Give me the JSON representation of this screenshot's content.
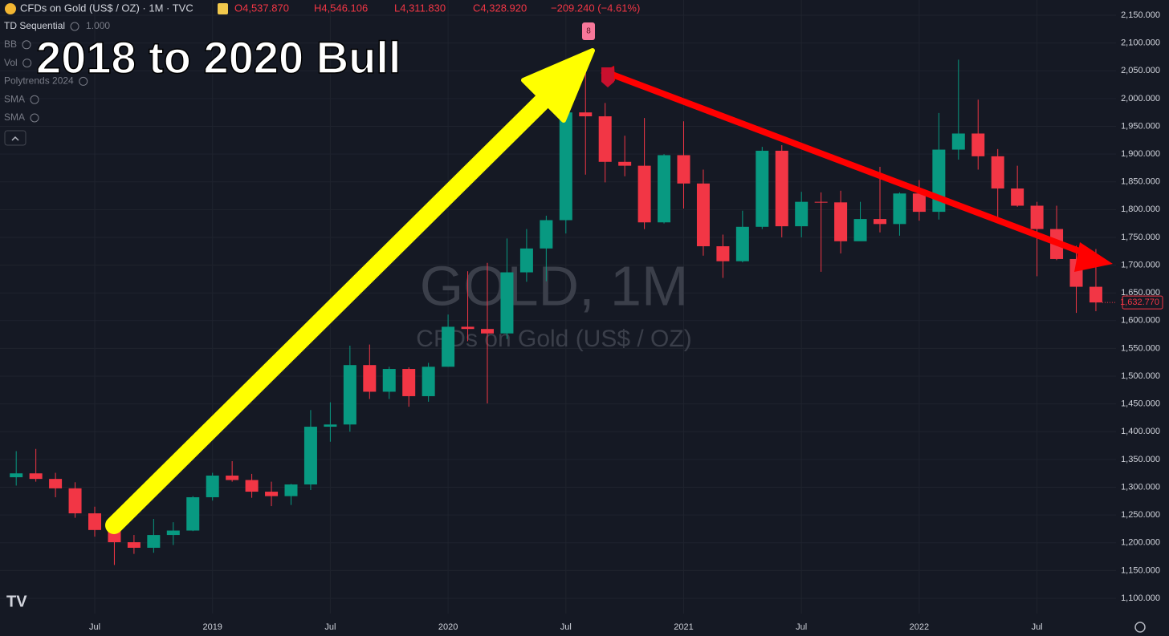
{
  "chart_data": {
    "type": "candlestick",
    "header": {
      "symbol": "CFDs on Gold (US$ / OZ) · 1M · TVC",
      "ohlc": [
        "O4,537.870",
        "H4,546.106",
        "L4,311.830",
        "C4,328.920",
        "−209.240 (−4.61%)"
      ]
    },
    "indicators": [
      {
        "name": "TD Sequential",
        "value": "1.000"
      },
      {
        "name": "BB"
      },
      {
        "name": "Vol"
      },
      {
        "name": "Polytrends 2024"
      },
      {
        "name": "SMA"
      },
      {
        "name": "SMA"
      }
    ],
    "title": "2018 to 2020 Bull",
    "watermark": [
      "GOLD, 1M",
      "CFDs on Gold (US$ / OZ)"
    ],
    "td_marker": "8",
    "categories": [
      null,
      null,
      null,
      null,
      "Jul",
      null,
      null,
      null,
      null,
      null,
      "2019",
      null,
      null,
      null,
      null,
      null,
      "Jul",
      null,
      null,
      null,
      null,
      null,
      "2020",
      null,
      null,
      null,
      null,
      null,
      "Jul",
      null,
      null,
      null,
      null,
      null,
      "2021",
      null,
      null,
      null,
      null,
      null,
      "Jul",
      null,
      null,
      null,
      null,
      null,
      "2022",
      null,
      null,
      null,
      null,
      null,
      "Jul",
      null,
      null,
      null
    ],
    "open": [
      1318,
      1325,
      1315,
      1298,
      1253,
      1223,
      1201,
      1191,
      1214,
      1222,
      1282,
      1321,
      1313,
      1292,
      1284,
      1305,
      1409,
      1413,
      1520,
      1472,
      1513,
      1464,
      1517,
      1589,
      1585,
      1577,
      1687,
      1730,
      1781,
      1975,
      1968,
      1886,
      1879,
      1777,
      1898,
      1847,
      1734,
      1707,
      1769,
      1906,
      1770,
      1814,
      1813,
      1743,
      1783,
      1774,
      1829,
      1796,
      1908,
      1937,
      1896,
      1838,
      1807,
      1765,
      1711,
      1661
    ],
    "high": [
      1365,
      1369,
      1326,
      1309,
      1265,
      1224,
      1214,
      1243,
      1237,
      1284,
      1326,
      1347,
      1324,
      1310,
      1306,
      1439,
      1453,
      1555,
      1557,
      1517,
      1516,
      1524,
      1611,
      1689,
      1704,
      1748,
      1765,
      1789,
      1984,
      2075,
      1992,
      1933,
      1965,
      1900,
      1959,
      1872,
      1755,
      1798,
      1913,
      1916,
      1832,
      1831,
      1834,
      1814,
      1877,
      1831,
      1853,
      1974,
      2070,
      1998,
      1909,
      1879,
      1814,
      1807,
      1735,
      1729
    ],
    "low": [
      1303,
      1310,
      1282,
      1245,
      1211,
      1160,
      1180,
      1182,
      1196,
      1221,
      1276,
      1310,
      1281,
      1266,
      1268,
      1295,
      1382,
      1400,
      1459,
      1459,
      1445,
      1454,
      1517,
      1563,
      1451,
      1567,
      1670,
      1671,
      1757,
      1863,
      1849,
      1860,
      1765,
      1775,
      1802,
      1717,
      1677,
      1705,
      1765,
      1750,
      1750,
      1688,
      1721,
      1746,
      1759,
      1753,
      1780,
      1782,
      1890,
      1872,
      1786,
      1805,
      1680,
      1709,
      1614,
      1617
    ],
    "close": [
      1325,
      1315,
      1298,
      1253,
      1223,
      1201,
      1191,
      1214,
      1222,
      1282,
      1321,
      1313,
      1292,
      1284,
      1305,
      1409,
      1413,
      1520,
      1472,
      1513,
      1464,
      1517,
      1589,
      1585,
      1577,
      1687,
      1730,
      1781,
      1975,
      1968,
      1886,
      1879,
      1777,
      1898,
      1847,
      1734,
      1707,
      1769,
      1906,
      1770,
      1814,
      1813,
      1743,
      1783,
      1774,
      1829,
      1796,
      1908,
      1937,
      1896,
      1838,
      1807,
      1765,
      1711,
      1661,
      1632.77
    ],
    "last_price": {
      "value": 1632.77,
      "label": "1,632.770"
    },
    "up_color": "#089981",
    "down_color": "#f23645",
    "ylim": [
      1100,
      2150
    ],
    "yticks": [
      {
        "value": 1100,
        "label": "1,100.000"
      },
      {
        "value": 1150,
        "label": "1,150.000"
      },
      {
        "value": 1200,
        "label": "1,200.000"
      },
      {
        "value": 1250,
        "label": "1,250.000"
      },
      {
        "value": 1300,
        "label": "1,300.000"
      },
      {
        "value": 1350,
        "label": "1,350.000"
      },
      {
        "value": 1400,
        "label": "1,400.000"
      },
      {
        "value": 1450,
        "label": "1,450.000"
      },
      {
        "value": 1500,
        "label": "1,500.000"
      },
      {
        "value": 1550,
        "label": "1,550.000"
      },
      {
        "value": 1600,
        "label": "1,600.000"
      },
      {
        "value": 1650,
        "label": "1,650.000"
      },
      {
        "value": 1700,
        "label": "1,700.000"
      },
      {
        "value": 1750,
        "label": "1,750.000"
      },
      {
        "value": 1800,
        "label": "1,800.000"
      },
      {
        "value": 1850,
        "label": "1,850.000"
      },
      {
        "value": 1900,
        "label": "1,900.000"
      },
      {
        "value": 1950,
        "label": "1,950.000"
      },
      {
        "value": 2000,
        "label": "2,000.000"
      },
      {
        "value": 2050,
        "label": "2,050.000"
      },
      {
        "value": 2100,
        "label": "2,100.000"
      },
      {
        "value": 2150,
        "label": "2,150.000"
      }
    ],
    "grid": true
  }
}
